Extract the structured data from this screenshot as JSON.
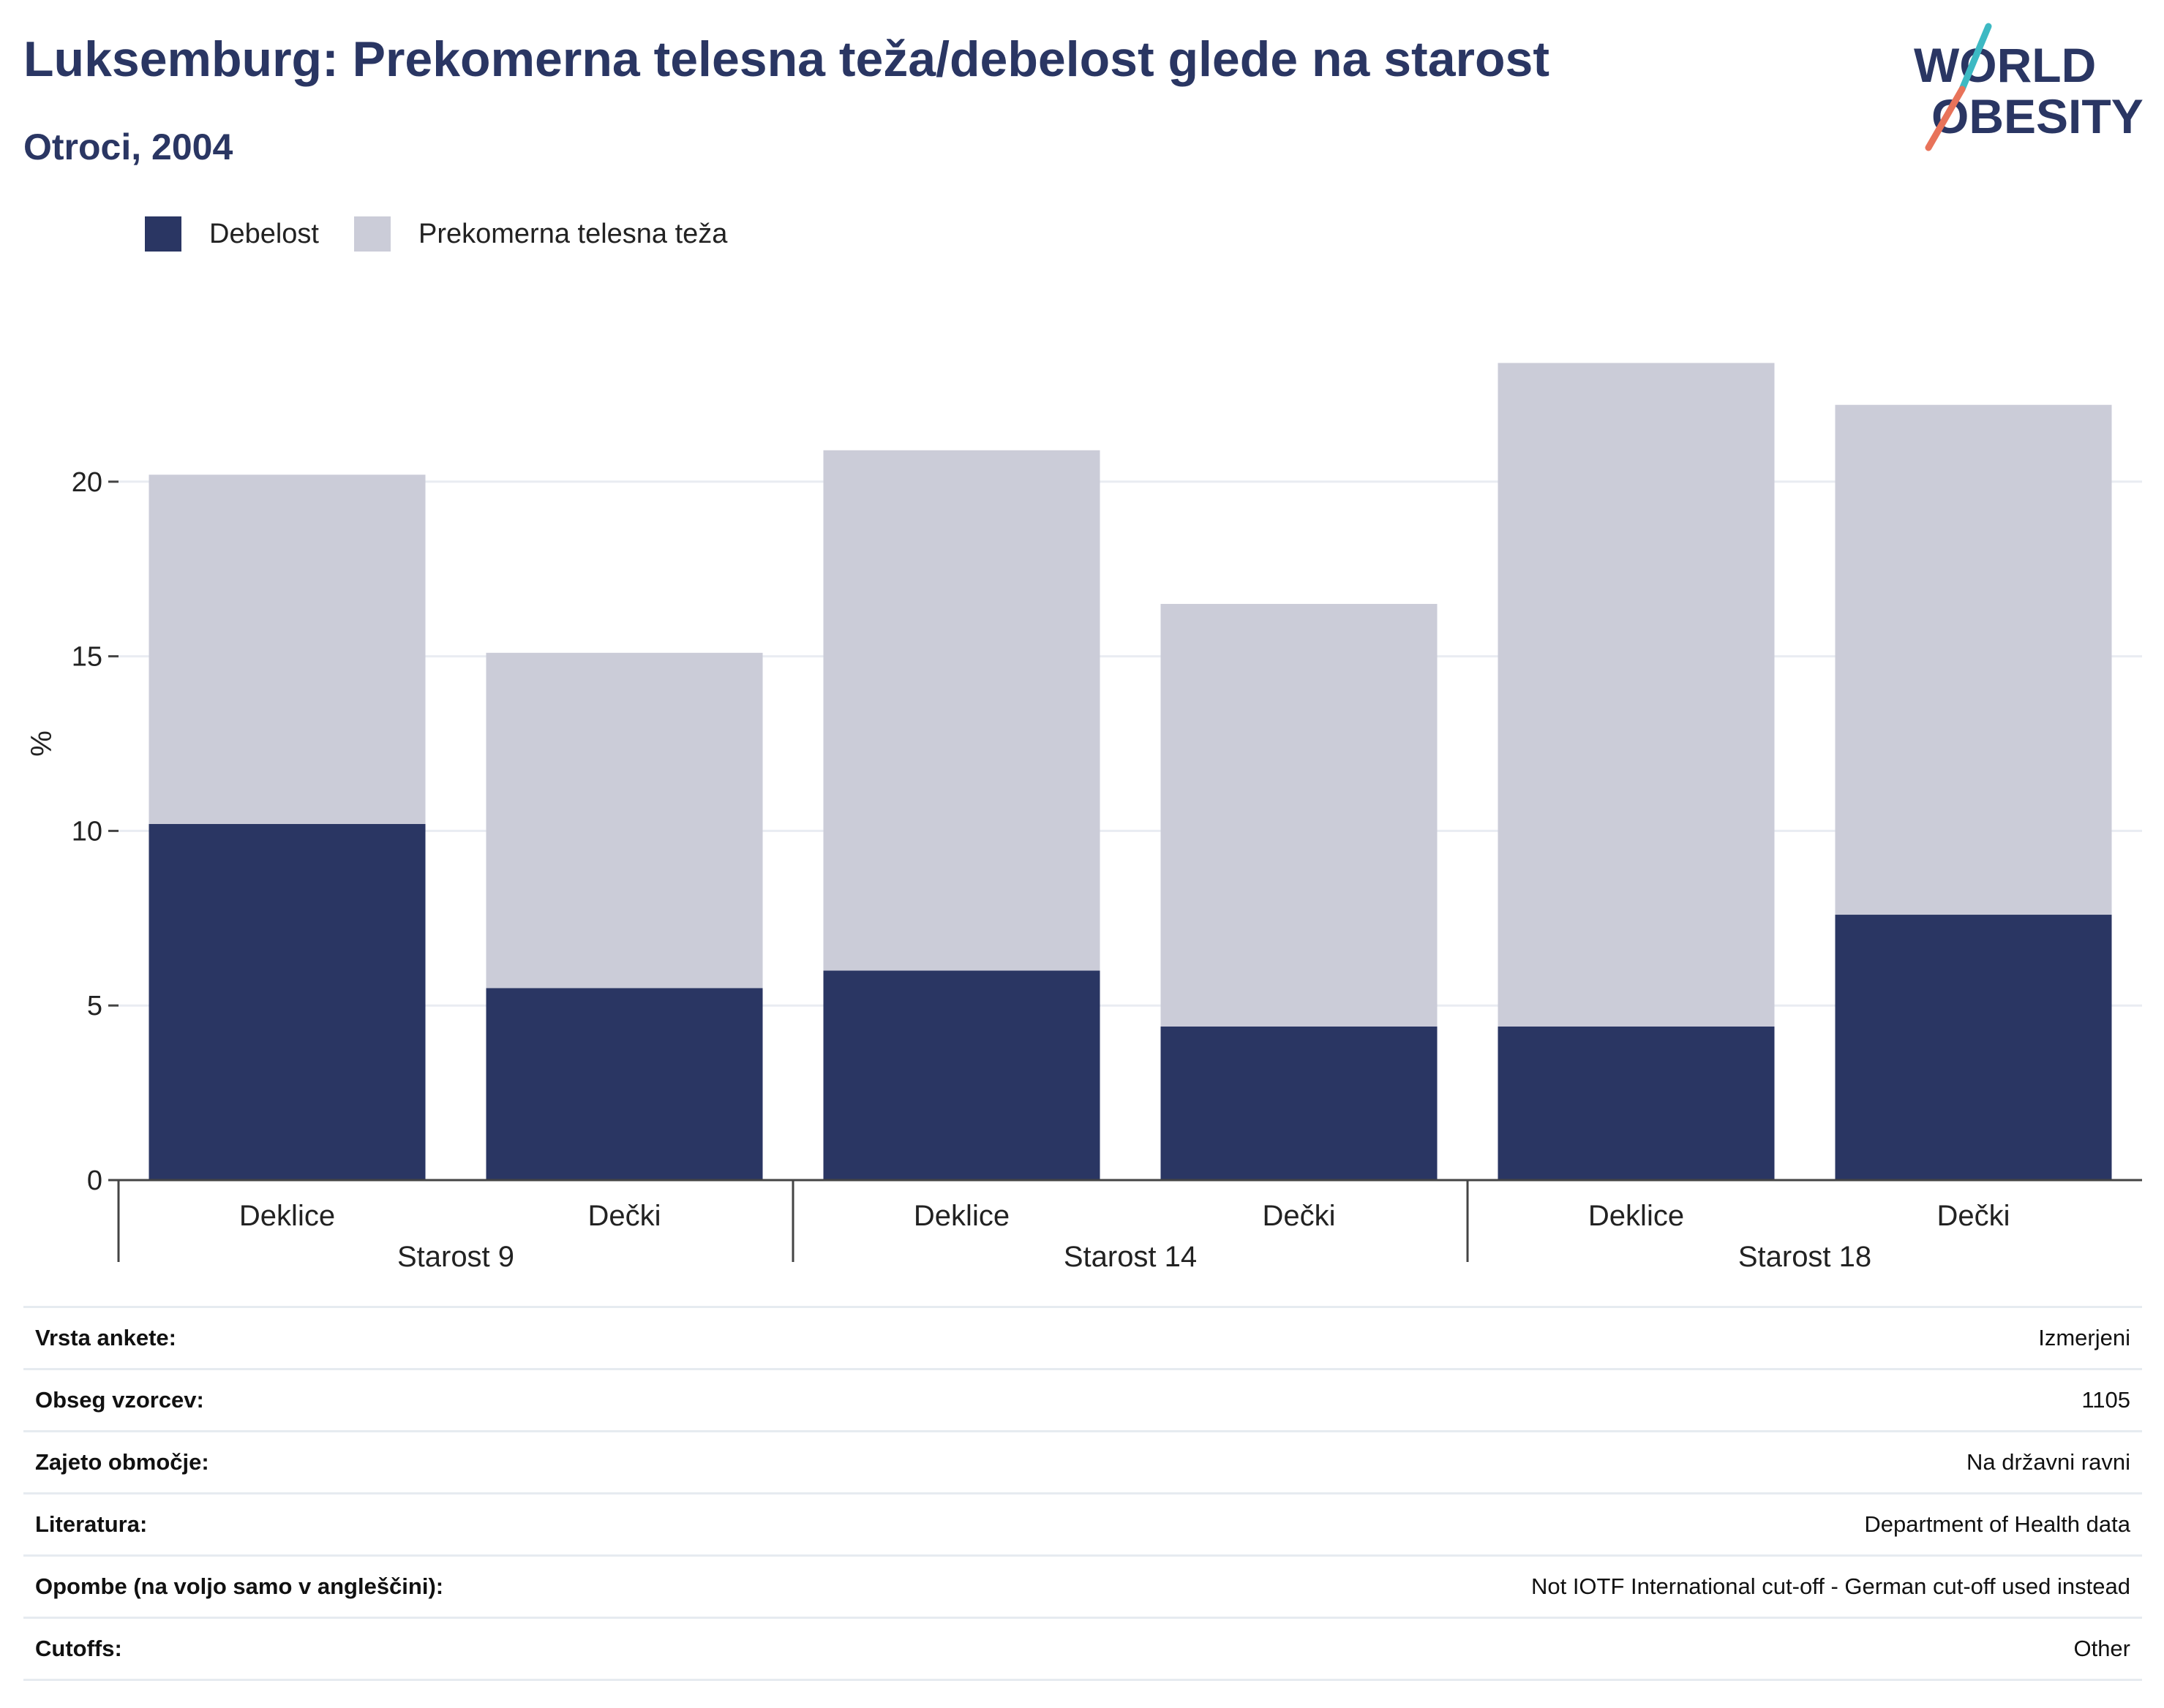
{
  "header": {
    "title": "Luksemburg: Prekomerna telesna teža/debelost glede na starost",
    "subtitle": "Otroci, 2004"
  },
  "logo": {
    "line1": "WORLD",
    "line2": "OBESITY"
  },
  "colors": {
    "obesity": "#2a3663",
    "overweight": "#cbccd8",
    "grid": "#e9ecf2",
    "text": "#2a3663"
  },
  "chart_data": {
    "type": "bar",
    "stacked": true,
    "ylabel": "%",
    "ylim": [
      0,
      25
    ],
    "yticks": [
      0,
      5,
      10,
      15,
      20
    ],
    "grid": true,
    "legend_position": "top-left",
    "groups": [
      {
        "label": "Starost 9",
        "categories": [
          "Deklice",
          "Dečki"
        ]
      },
      {
        "label": "Starost 14",
        "categories": [
          "Deklice",
          "Dečki"
        ]
      },
      {
        "label": "Starost 18",
        "categories": [
          "Deklice",
          "Dečki"
        ]
      }
    ],
    "categories": [
      "Deklice",
      "Dečki",
      "Deklice",
      "Dečki",
      "Deklice",
      "Dečki"
    ],
    "series": [
      {
        "name": "Debelost",
        "values": [
          10.2,
          5.5,
          6.0,
          4.4,
          4.4,
          7.6
        ]
      },
      {
        "name": "Prekomerna telesna teža",
        "values": [
          10.0,
          9.6,
          14.9,
          12.1,
          19.0,
          14.6
        ]
      }
    ]
  },
  "info": [
    {
      "label": "Vrsta ankete:",
      "value": "Izmerjeni"
    },
    {
      "label": "Obseg vzorcev:",
      "value": "1105"
    },
    {
      "label": "Zajeto območje:",
      "value": "Na državni ravni"
    },
    {
      "label": "Literatura:",
      "value": "Department of Health data"
    },
    {
      "label": "Opombe (na voljo samo v angleščini):",
      "value": "Not IOTF International cut-off - German cut-off used instead"
    },
    {
      "label": "Cutoffs:",
      "value": "Other"
    }
  ]
}
